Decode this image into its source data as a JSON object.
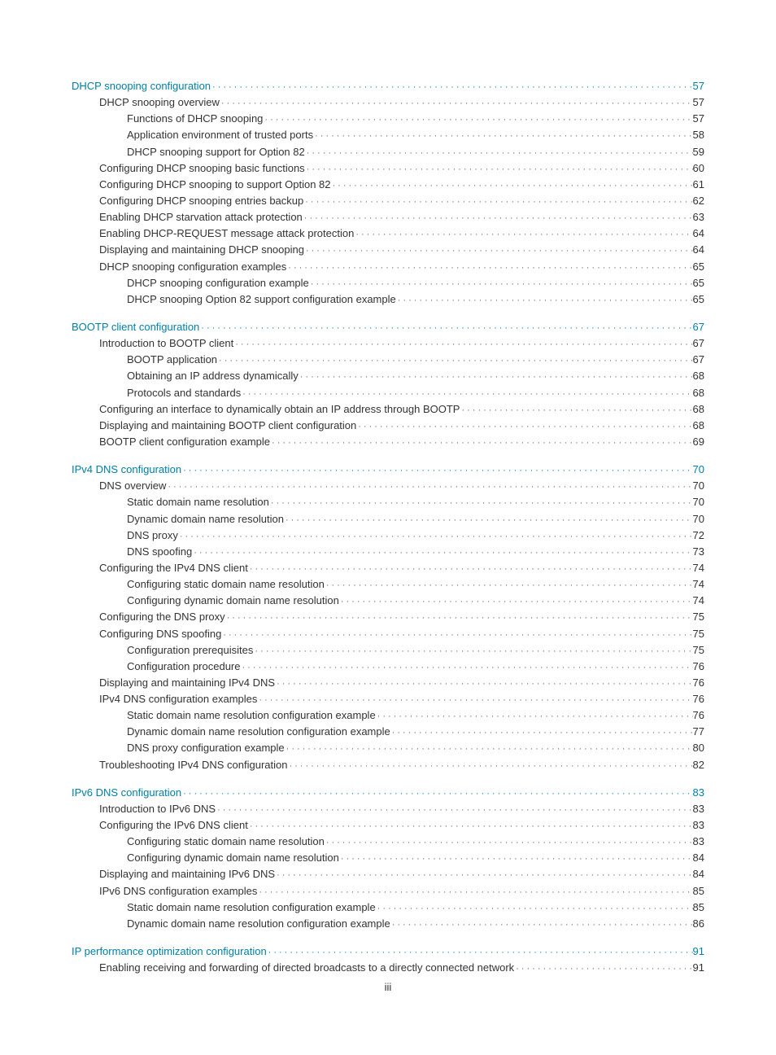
{
  "pageNumber": "iii",
  "colors": {
    "link": "#0080a8",
    "text": "#333333",
    "dots": "#666666",
    "background": "#ffffff"
  },
  "toc": [
    {
      "title": "DHCP snooping configuration",
      "page": "57",
      "children": [
        {
          "title": "DHCP snooping overview",
          "page": "57",
          "children": [
            {
              "title": "Functions of DHCP snooping",
              "page": "57"
            },
            {
              "title": "Application environment of trusted ports",
              "page": "58"
            },
            {
              "title": "DHCP snooping support for Option 82",
              "page": "59"
            }
          ]
        },
        {
          "title": "Configuring DHCP snooping basic functions",
          "page": "60"
        },
        {
          "title": "Configuring DHCP snooping to support Option 82",
          "page": "61"
        },
        {
          "title": "Configuring DHCP snooping entries backup",
          "page": "62"
        },
        {
          "title": "Enabling DHCP starvation attack protection",
          "page": "63"
        },
        {
          "title": "Enabling DHCP-REQUEST message attack protection",
          "page": "64"
        },
        {
          "title": "Displaying and maintaining DHCP snooping",
          "page": "64"
        },
        {
          "title": "DHCP snooping configuration examples",
          "page": "65",
          "children": [
            {
              "title": "DHCP snooping configuration example",
              "page": "65"
            },
            {
              "title": "DHCP snooping Option 82 support configuration example",
              "page": "65"
            }
          ]
        }
      ]
    },
    {
      "title": "BOOTP client configuration",
      "page": "67",
      "children": [
        {
          "title": "Introduction to BOOTP client",
          "page": "67",
          "children": [
            {
              "title": "BOOTP application",
              "page": "67"
            },
            {
              "title": "Obtaining an IP address dynamically",
              "page": "68"
            },
            {
              "title": "Protocols and standards",
              "page": "68"
            }
          ]
        },
        {
          "title": "Configuring an interface to dynamically obtain an IP address through BOOTP",
          "page": "68"
        },
        {
          "title": "Displaying and maintaining BOOTP client configuration",
          "page": "68"
        },
        {
          "title": "BOOTP client configuration example",
          "page": "69"
        }
      ]
    },
    {
      "title": "IPv4 DNS configuration",
      "page": "70",
      "children": [
        {
          "title": "DNS overview",
          "page": "70",
          "children": [
            {
              "title": "Static domain name resolution",
              "page": "70"
            },
            {
              "title": "Dynamic domain name resolution",
              "page": "70"
            },
            {
              "title": "DNS proxy",
              "page": "72"
            },
            {
              "title": "DNS spoofing",
              "page": "73"
            }
          ]
        },
        {
          "title": "Configuring the IPv4 DNS client",
          "page": "74",
          "children": [
            {
              "title": "Configuring static domain name resolution",
              "page": "74"
            },
            {
              "title": "Configuring dynamic domain name resolution",
              "page": "74"
            }
          ]
        },
        {
          "title": "Configuring the DNS proxy",
          "page": "75"
        },
        {
          "title": "Configuring DNS spoofing",
          "page": "75",
          "children": [
            {
              "title": "Configuration prerequisites",
              "page": "75"
            },
            {
              "title": "Configuration procedure",
              "page": "76"
            }
          ]
        },
        {
          "title": "Displaying and maintaining IPv4 DNS",
          "page": "76"
        },
        {
          "title": "IPv4 DNS configuration examples",
          "page": "76",
          "children": [
            {
              "title": "Static domain name resolution configuration example",
              "page": "76"
            },
            {
              "title": "Dynamic domain name resolution configuration example",
              "page": "77"
            },
            {
              "title": "DNS proxy configuration example",
              "page": "80"
            }
          ]
        },
        {
          "title": "Troubleshooting IPv4 DNS configuration",
          "page": "82"
        }
      ]
    },
    {
      "title": "IPv6 DNS configuration",
      "page": "83",
      "children": [
        {
          "title": "Introduction to IPv6 DNS",
          "page": "83"
        },
        {
          "title": "Configuring the IPv6 DNS client",
          "page": "83",
          "children": [
            {
              "title": "Configuring static domain name resolution",
              "page": "83"
            },
            {
              "title": "Configuring dynamic domain name resolution",
              "page": "84"
            }
          ]
        },
        {
          "title": "Displaying and maintaining IPv6 DNS",
          "page": "84"
        },
        {
          "title": "IPv6 DNS configuration examples",
          "page": "85",
          "children": [
            {
              "title": "Static domain name resolution configuration example",
              "page": "85"
            },
            {
              "title": "Dynamic domain name resolution configuration example",
              "page": "86"
            }
          ]
        }
      ]
    },
    {
      "title": "IP performance optimization configuration",
      "page": "91",
      "children": [
        {
          "title": "Enabling receiving and forwarding of directed broadcasts to a directly connected network",
          "page": "91"
        }
      ]
    }
  ]
}
